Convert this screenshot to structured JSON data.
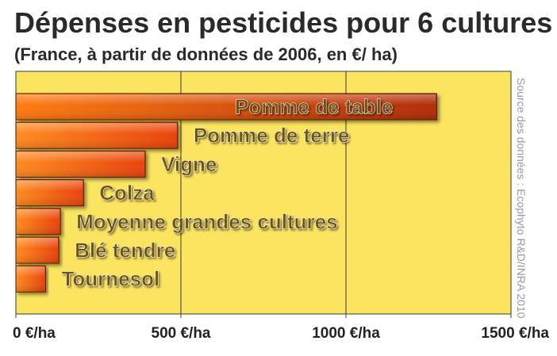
{
  "chart_data": {
    "type": "bar",
    "orientation": "horizontal",
    "title": "Dépenses en pesticides pour 6 cultures",
    "subtitle": "(France, à partir de données de 2006, en €/ ha)",
    "categories": [
      "Pomme de table",
      "Pomme de terre",
      "Vigne",
      "Colza",
      "Moyenne grandes cultures",
      "Blé tendre",
      "Tournesol"
    ],
    "values": [
      1275,
      490,
      392,
      205,
      135,
      130,
      90
    ],
    "xlim": [
      0,
      1500
    ],
    "x_ticks": [
      0,
      500,
      1000,
      1500
    ],
    "x_tick_labels": [
      "0 €/ha",
      "500 €/ha",
      "1000 €/ha",
      "1500 €/ha"
    ],
    "source_note": "Source des données : Ecophyto R&D/INRA 2010",
    "grid": true,
    "colors": {
      "plot_bg": "#fbe460",
      "bar_light": "#ff8a1e",
      "bar_dark": "#e8420a",
      "bar_highlight_dark": "#b02c08",
      "label_text": "#6e5312",
      "gridline": "#3a3a3a"
    }
  }
}
